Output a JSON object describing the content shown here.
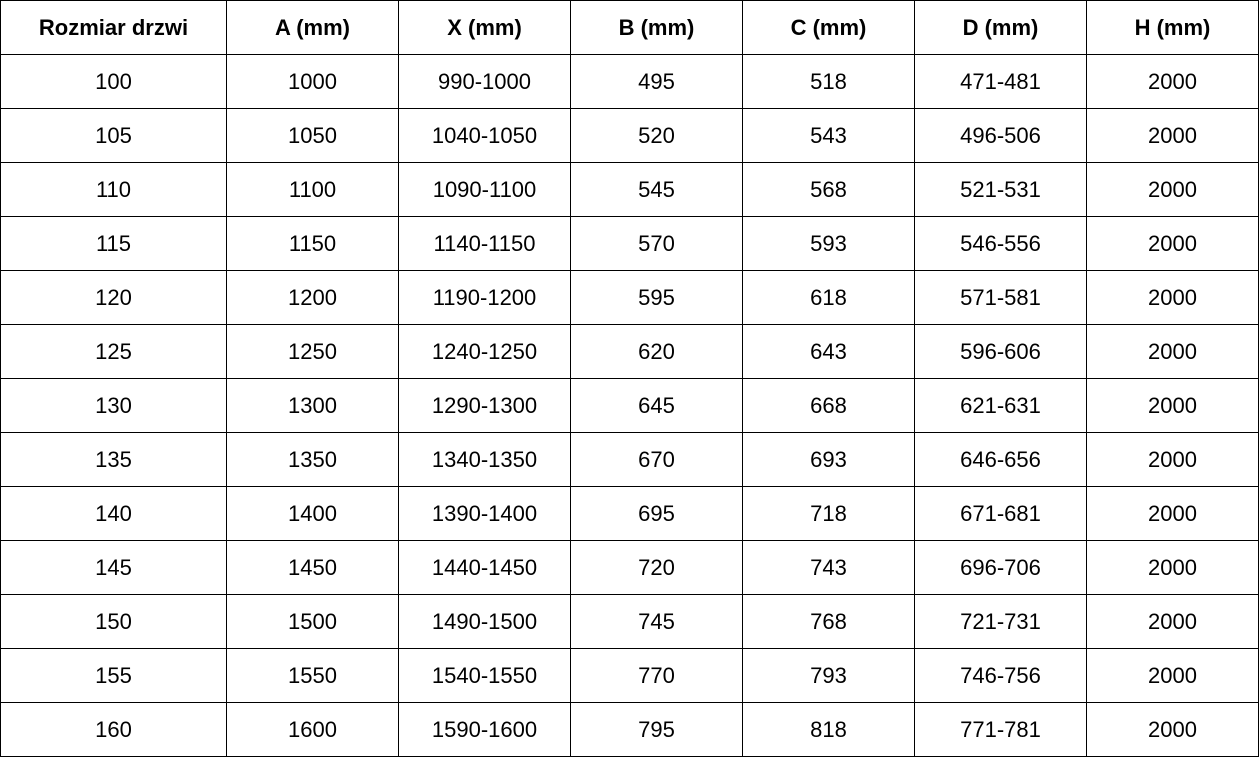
{
  "headers": [
    "Rozmiar drzwi",
    "A (mm)",
    "X (mm)",
    "B (mm)",
    "C (mm)",
    "D (mm)",
    "H (mm)"
  ],
  "rows": [
    [
      "100",
      "1000",
      "990-1000",
      "495",
      "518",
      "471-481",
      "2000"
    ],
    [
      "105",
      "1050",
      "1040-1050",
      "520",
      "543",
      "496-506",
      "2000"
    ],
    [
      "110",
      "1100",
      "1090-1100",
      "545",
      "568",
      "521-531",
      "2000"
    ],
    [
      "115",
      "1150",
      "1140-1150",
      "570",
      "593",
      "546-556",
      "2000"
    ],
    [
      "120",
      "1200",
      "1190-1200",
      "595",
      "618",
      "571-581",
      "2000"
    ],
    [
      "125",
      "1250",
      "1240-1250",
      "620",
      "643",
      "596-606",
      "2000"
    ],
    [
      "130",
      "1300",
      "1290-1300",
      "645",
      "668",
      "621-631",
      "2000"
    ],
    [
      "135",
      "1350",
      "1340-1350",
      "670",
      "693",
      "646-656",
      "2000"
    ],
    [
      "140",
      "1400",
      "1390-1400",
      "695",
      "718",
      "671-681",
      "2000"
    ],
    [
      "145",
      "1450",
      "1440-1450",
      "720",
      "743",
      "696-706",
      "2000"
    ],
    [
      "150",
      "1500",
      "1490-1500",
      "745",
      "768",
      "721-731",
      "2000"
    ],
    [
      "155",
      "1550",
      "1540-1550",
      "770",
      "793",
      "746-756",
      "2000"
    ],
    [
      "160",
      "1600",
      "1590-1600",
      "795",
      "818",
      "771-781",
      "2000"
    ]
  ]
}
